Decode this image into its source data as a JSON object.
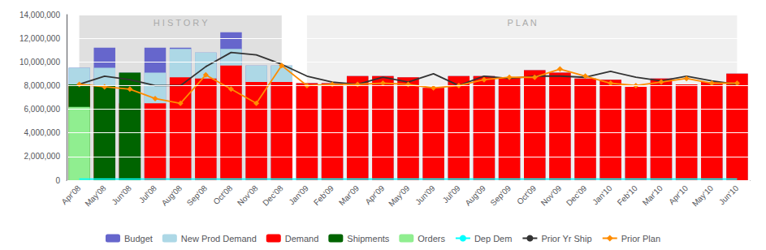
{
  "chart_data": {
    "type": "bar",
    "categories": [
      "Apr'08",
      "May'08",
      "Jun'08",
      "Jul'08",
      "Aug'08",
      "Sep'08",
      "Oct'08",
      "Nov'08",
      "Dec'08",
      "Jan'09",
      "Feb'09",
      "Mar'09",
      "Apr'09",
      "May'09",
      "Jun'09",
      "Jul'09",
      "Aug'09",
      "Sep'09",
      "Oct'09",
      "Nov'09",
      "Dec'09",
      "Jan'10",
      "Feb'10",
      "Mar'10",
      "Apr'10",
      "May'10",
      "Jun'10"
    ],
    "series": [
      {
        "name": "Budget",
        "type": "bar",
        "color": "#6666CC",
        "values": [
          9500000,
          11200000,
          9100000,
          11200000,
          11200000,
          10800000,
          12500000,
          9700000,
          9700000,
          8200000,
          8200000,
          8800000,
          8800000,
          8700000,
          7800000,
          8800000,
          8800000,
          8700000,
          9300000,
          9100000,
          8600000,
          8500000,
          7900000,
          8600000,
          8100000,
          8300000,
          9000000
        ]
      },
      {
        "name": "New Prod Demand",
        "type": "bar",
        "color": "#ADD8E6",
        "values": [
          9500000,
          9500000,
          9100000,
          9100000,
          11100000,
          10800000,
          11100000,
          9700000,
          9700000,
          8200000,
          8200000,
          8800000,
          8800000,
          8700000,
          7800000,
          8800000,
          8800000,
          8700000,
          9300000,
          9100000,
          8600000,
          8500000,
          7900000,
          8600000,
          8100000,
          8300000,
          9000000
        ]
      },
      {
        "name": "Demand",
        "type": "bar",
        "color": "#FF0000",
        "values": [
          8100000,
          8000000,
          6500000,
          6500000,
          8700000,
          8600000,
          9700000,
          8300000,
          8300000,
          8200000,
          8200000,
          8800000,
          8800000,
          8700000,
          7800000,
          8800000,
          8800000,
          8700000,
          9300000,
          9100000,
          8600000,
          8500000,
          7900000,
          8600000,
          8100000,
          8300000,
          9000000
        ]
      },
      {
        "name": "Shipments",
        "type": "bar",
        "color": "#006400",
        "values": [
          8100000,
          8000000,
          9100000,
          0,
          0,
          0,
          0,
          0,
          0,
          0,
          0,
          0,
          0,
          0,
          0,
          0,
          0,
          0,
          0,
          0,
          0,
          0,
          0,
          0,
          0,
          0,
          0
        ]
      },
      {
        "name": "Orders",
        "type": "bar",
        "color": "#90EE90",
        "values": [
          6200000,
          0,
          0,
          0,
          0,
          0,
          0,
          0,
          0,
          0,
          0,
          0,
          0,
          0,
          0,
          0,
          0,
          0,
          0,
          0,
          0,
          0,
          0,
          0,
          0,
          0,
          0
        ]
      },
      {
        "name": "Dep Dem",
        "type": "line",
        "color": "#00FFFF",
        "values": [
          100000,
          100000,
          100000,
          100000,
          100000,
          100000,
          100000,
          100000,
          100000,
          100000,
          100000,
          100000,
          100000,
          100000,
          100000,
          100000,
          100000,
          100000,
          100000,
          100000,
          100000,
          100000,
          100000,
          100000,
          100000,
          100000,
          100000
        ]
      },
      {
        "name": "Prior Yr Ship",
        "type": "line",
        "color": "#333333",
        "values": [
          8100000,
          8800000,
          8500000,
          8000000,
          8000000,
          9600000,
          10800000,
          10600000,
          9800000,
          8800000,
          8300000,
          8100000,
          8700000,
          8300000,
          9000000,
          8000000,
          8800000,
          8600000,
          8800000,
          8800000,
          8700000,
          9200000,
          8700000,
          8400000,
          8800000,
          8400000,
          8100000
        ]
      },
      {
        "name": "Prior Plan",
        "type": "line",
        "color": "#FF8C00",
        "marker": "diamond",
        "values": [
          8100000,
          7900000,
          7700000,
          6900000,
          6500000,
          8900000,
          7700000,
          6500000,
          9700000,
          8000000,
          8100000,
          8100000,
          8200000,
          8100000,
          7800000,
          8000000,
          8500000,
          8700000,
          8700000,
          9400000,
          8800000,
          8200000,
          8000000,
          8300000,
          8600000,
          8200000,
          8200000
        ]
      }
    ],
    "ylim": [
      0,
      14000000
    ],
    "yticks": [
      0,
      {
        "value": 2000000,
        "label": "2,000,000"
      },
      {
        "value": 4000000,
        "label": "4,000,000"
      },
      {
        "value": 6000000,
        "label": "6,000,000"
      },
      {
        "value": 8000000,
        "label": "8,000,000"
      },
      {
        "value": 10000000,
        "label": "10,000,000"
      },
      {
        "value": 12000000,
        "label": "12,000,000"
      },
      {
        "value": 14000000,
        "label": "14,000,000"
      }
    ],
    "grid": true,
    "legend": "bottom",
    "annotations": [
      {
        "text": "H I S T O R Y",
        "from": "Apr'08",
        "to": "Dec'08",
        "color": "#E0E0E0"
      },
      {
        "text": "P L A N",
        "from": "Jan'09",
        "to": "Jun'10",
        "color": "#F0F0F0"
      }
    ]
  }
}
